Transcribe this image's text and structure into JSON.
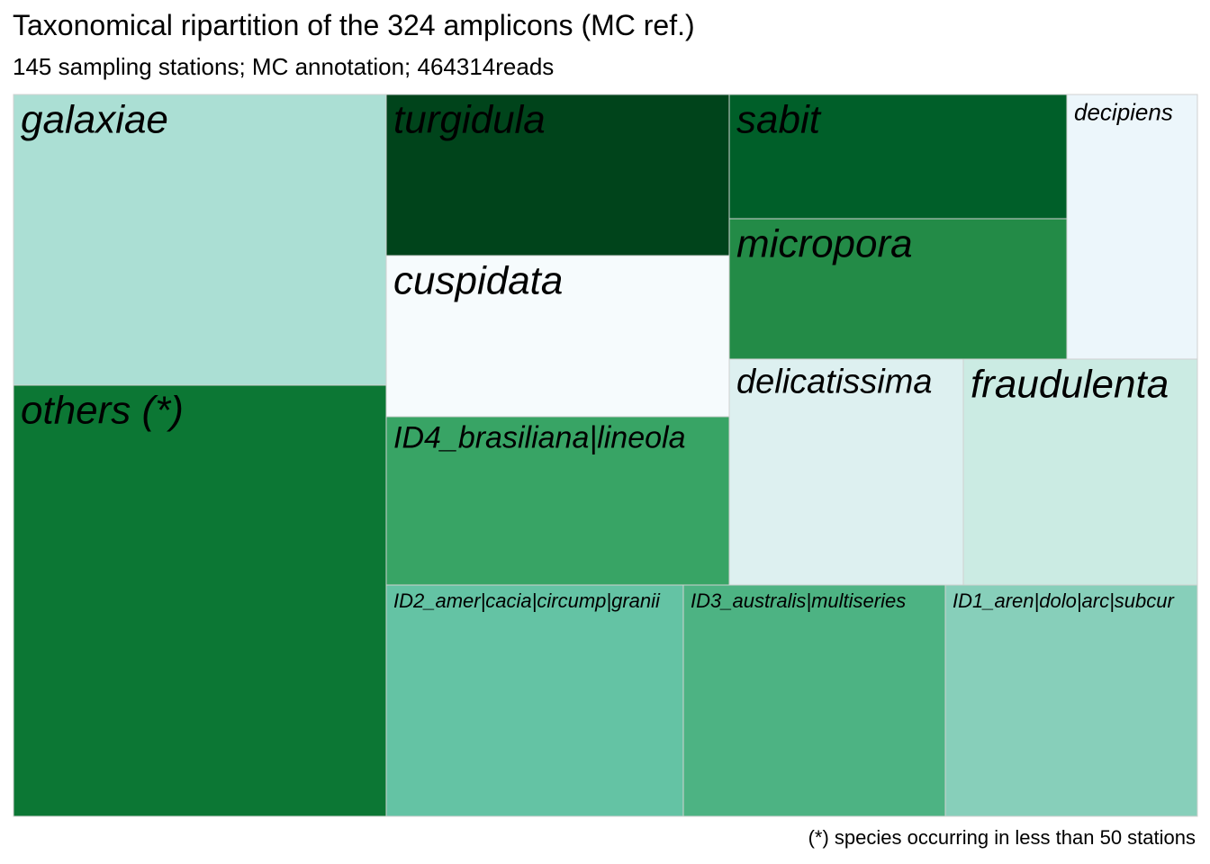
{
  "header": {
    "title": "Taxonomical ripartition of the 324 amplicons (MC ref.)",
    "subtitle": "145 sampling stations; MC annotation; 464314reads"
  },
  "footer": {
    "caption": "(*) species occurring in less than 50 stations"
  },
  "chart_data": {
    "type": "treemap",
    "title": "Taxonomical ripartition of the 324 amplicons (MC ref.)",
    "subtitle": "145 sampling stations; MC annotation; 464314reads",
    "note": "(*) species occurring in less than 50 stations",
    "tiles": [
      {
        "label": "galaxiae",
        "color": "#abdfd4"
      },
      {
        "label": "others (*)",
        "color": "#0c7734"
      },
      {
        "label": "turgidula",
        "color": "#00441b"
      },
      {
        "label": "cuspidata",
        "color": "#f6fbfd"
      },
      {
        "label": "ID4_brasiliana|lineola",
        "color": "#38a465"
      },
      {
        "label": "sabit",
        "color": "#005f29"
      },
      {
        "label": "micropora",
        "color": "#238b47"
      },
      {
        "label": "decipiens",
        "color": "#ecf6fb"
      },
      {
        "label": "delicatissima",
        "color": "#ddf0f0"
      },
      {
        "label": "fraudulenta",
        "color": "#cbebe3"
      },
      {
        "label": "ID2_amer|cacia|circump|granii",
        "color": "#64c3a4"
      },
      {
        "label": "ID3_australis|multiseries",
        "color": "#4db383"
      },
      {
        "label": "ID1_aren|dolo|arc|subcur",
        "color": "#87cfba"
      }
    ]
  }
}
